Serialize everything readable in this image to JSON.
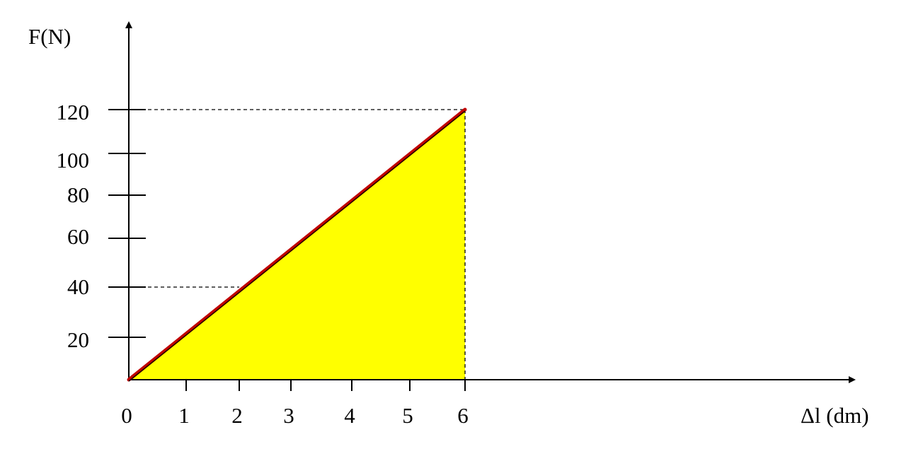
{
  "chart_data": {
    "type": "area",
    "ylabel": "F(N)",
    "xlabel": "Δl (dm)",
    "x_ticks": [
      0,
      1,
      2,
      3,
      4,
      5,
      6
    ],
    "y_ticks": [
      20,
      40,
      60,
      80,
      100,
      120
    ],
    "y_tick_positions": [
      20,
      40,
      60,
      80,
      100,
      120
    ],
    "xlim": [
      0,
      6
    ],
    "ylim": [
      0,
      120
    ],
    "series": [
      {
        "x": [
          0,
          6
        ],
        "y": [
          0,
          120
        ]
      }
    ],
    "reference_points": [
      {
        "x": 2,
        "y": 40
      },
      {
        "x": 6,
        "y": 120
      }
    ],
    "grid": false,
    "colors": {
      "fill": "#ffff00",
      "line": "#c00000",
      "axis": "#000000"
    }
  }
}
